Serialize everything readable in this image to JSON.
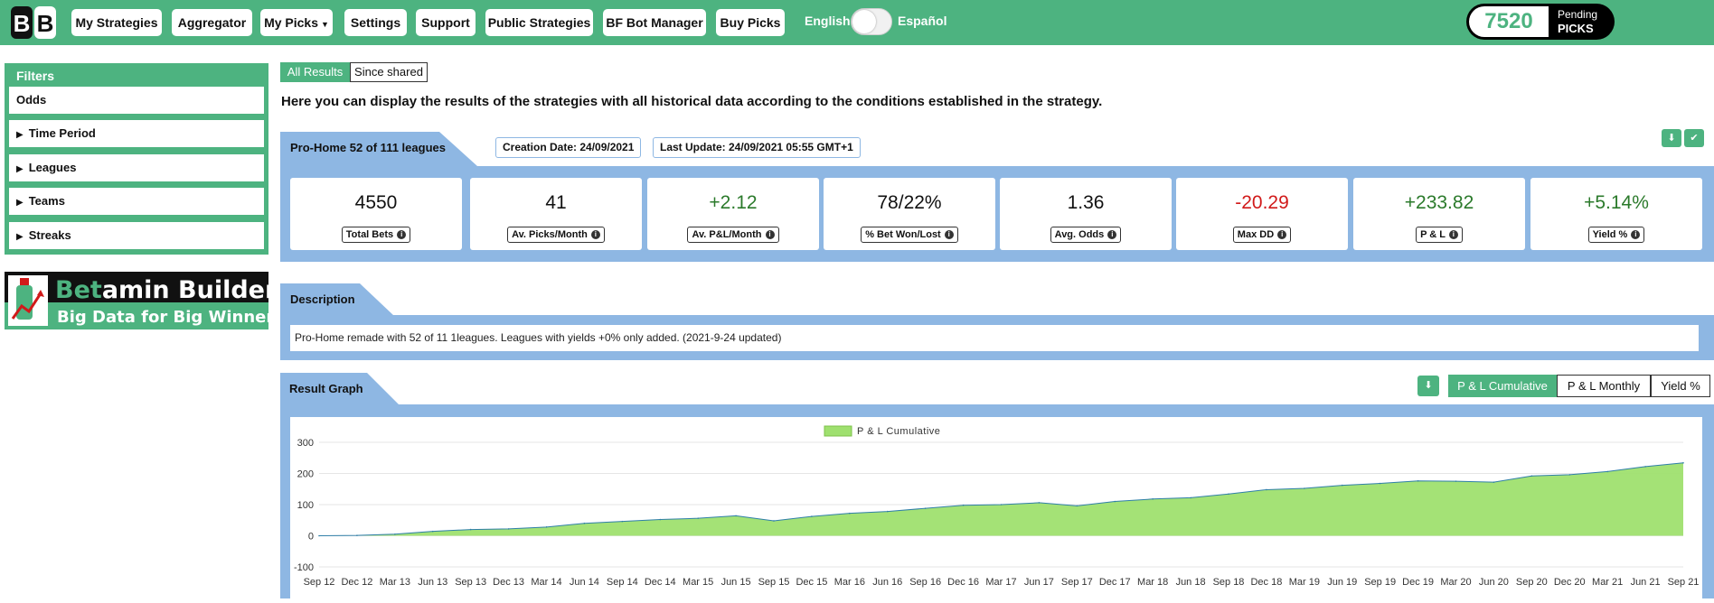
{
  "brand": {
    "logo_text": "BB"
  },
  "nav": {
    "items": [
      {
        "label": "My Strategies"
      },
      {
        "label": "Aggregator"
      },
      {
        "label": "My Picks"
      },
      {
        "label": "Settings"
      },
      {
        "label": "Support"
      },
      {
        "label": "Public Strategies"
      },
      {
        "label": "BF Bot Manager"
      },
      {
        "label": "Buy Picks"
      }
    ],
    "lang_en": "English",
    "lang_es": "Español",
    "pending_count": "7520",
    "pending_label_1": "Pending",
    "pending_label_2": "PICKS"
  },
  "sidebar": {
    "title": "Filters",
    "items": [
      {
        "label": "Odds"
      },
      {
        "label": "Time Period"
      },
      {
        "label": "Leagues"
      },
      {
        "label": "Teams"
      },
      {
        "label": "Streaks"
      }
    ],
    "banner_title_a": "Bet",
    "banner_title_b": "amin Builder",
    "banner_subtitle": "Big Data for Big Winners"
  },
  "main": {
    "tabs": [
      {
        "label": "All Results"
      },
      {
        "label": "Since shared"
      }
    ],
    "intro": "Here you can display the results of the strategies with all historical data according to the conditions established in the strategy.",
    "strategy_title": "Pro-Home 52 of 111 leagues",
    "creation_date": "Creation Date: 24/09/2021",
    "last_update": "Last Update: 24/09/2021 05:55 GMT+1",
    "stats": [
      {
        "value": "4550",
        "label": "Total Bets"
      },
      {
        "value": "41",
        "label": "Av. Picks/Month"
      },
      {
        "value": "+2.12",
        "label": "Av. P&L/Month"
      },
      {
        "value": "78/22%",
        "label": "% Bet Won/Lost"
      },
      {
        "value": "1.36",
        "label": "Avg. Odds"
      },
      {
        "value": "-20.29",
        "label": "Max DD"
      },
      {
        "value": "+233.82",
        "label": "P & L"
      },
      {
        "value": "+5.14%",
        "label": "Yield %"
      }
    ],
    "description_title": "Description",
    "description_text": "Pro-Home remade with 52 of 11 1leagues. Leagues with yields +0% only added. (2021-9-24 updated)",
    "graph_title": "Result Graph",
    "graph_buttons": [
      {
        "label": "P & L Cumulative"
      },
      {
        "label": "P & L Monthly"
      },
      {
        "label": "Yield %"
      }
    ]
  },
  "colors": {
    "accent": "#4db380",
    "panel": "#8eb7e3",
    "area_fill": "#9fe06f",
    "area_line": "#2f7fa8",
    "positive": "#2b7a2b",
    "negative": "#d11a1a"
  },
  "icons": {
    "download": "download-icon",
    "check": "check-icon",
    "info": "info-icon"
  },
  "chart_data": {
    "type": "area",
    "legend": [
      "P & L Cumulative"
    ],
    "legend_position": "top",
    "ylim": [
      -100,
      300
    ],
    "yticks": [
      -100,
      0,
      100,
      200,
      300
    ],
    "x_ticks": [
      "Sep 12",
      "Dec 12",
      "Mar 13",
      "Jun 13",
      "Sep 13",
      "Dec 13",
      "Mar 14",
      "Jun 14",
      "Sep 14",
      "Dec 14",
      "Mar 15",
      "Jun 15",
      "Sep 15",
      "Dec 15",
      "Mar 16",
      "Jun 16",
      "Sep 16",
      "Dec 16",
      "Mar 17",
      "Jun 17",
      "Sep 17",
      "Dec 17",
      "Mar 18",
      "Jun 18",
      "Sep 18",
      "Dec 18",
      "Mar 19",
      "Jun 19",
      "Sep 19",
      "Dec 19",
      "Mar 20",
      "Jun 20",
      "Sep 20",
      "Dec 20",
      "Mar 21",
      "Jun 21",
      "Sep 21"
    ],
    "series": [
      {
        "name": "P & L Cumulative",
        "x": [
          "Sep 12",
          "Dec 12",
          "Mar 13",
          "Jun 13",
          "Sep 13",
          "Dec 13",
          "Mar 14",
          "Jun 14",
          "Sep 14",
          "Dec 14",
          "Mar 15",
          "Jun 15",
          "Sep 15",
          "Dec 15",
          "Mar 16",
          "Jun 16",
          "Sep 16",
          "Dec 16",
          "Mar 17",
          "Jun 17",
          "Sep 17",
          "Dec 17",
          "Mar 18",
          "Jun 18",
          "Sep 18",
          "Dec 18",
          "Mar 19",
          "Jun 19",
          "Sep 19",
          "Dec 19",
          "Mar 20",
          "Jun 20",
          "Sep 20",
          "Dec 20",
          "Mar 21",
          "Jun 21",
          "Sep 21"
        ],
        "values": [
          0,
          1,
          5,
          14,
          20,
          22,
          28,
          40,
          46,
          52,
          56,
          64,
          48,
          62,
          72,
          78,
          88,
          98,
          100,
          106,
          96,
          110,
          118,
          122,
          134,
          148,
          152,
          162,
          168,
          176,
          175,
          172,
          192,
          196,
          206,
          222,
          234
        ]
      }
    ],
    "grid": true
  }
}
